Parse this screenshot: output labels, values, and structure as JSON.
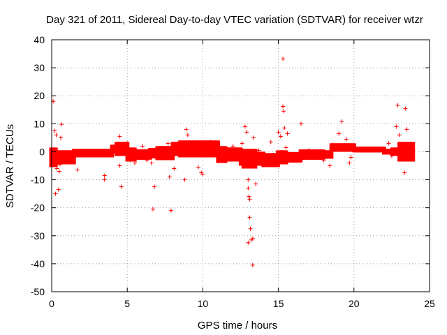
{
  "chart_data": {
    "type": "scatter",
    "title": "Day 321 of 2011, Sidereal Day-to-day VTEC variation (SDTVAR) for receiver wtzr",
    "xlabel": "GPS time / hours",
    "ylabel": "SDTVAR / TECUs",
    "xlim": [
      0,
      25
    ],
    "ylim": [
      -50,
      40
    ],
    "xticks": [
      0,
      5,
      10,
      15,
      20,
      25
    ],
    "yticks": [
      -50,
      -40,
      -30,
      -20,
      -10,
      0,
      10,
      20,
      30,
      40
    ],
    "grid": true,
    "marker": "+",
    "series_color": "#ff0000",
    "series": [
      {
        "name": "SDTVAR",
        "points": [
          [
            0.1,
            18
          ],
          [
            0.2,
            7.5
          ],
          [
            0.3,
            6
          ],
          [
            0.25,
            -15
          ],
          [
            0.45,
            -13.5
          ],
          [
            0.35,
            -6
          ],
          [
            0.5,
            -7
          ],
          [
            0.55,
            -4.5
          ],
          [
            0.65,
            9.8
          ],
          [
            0.6,
            5
          ],
          [
            0.8,
            -2.5
          ],
          [
            1.2,
            -2.0
          ],
          [
            1.5,
            -1.5
          ],
          [
            1.7,
            -6.5
          ],
          [
            2.0,
            -1.0
          ],
          [
            2.5,
            -0.8
          ],
          [
            3.0,
            -0.5
          ],
          [
            3.5,
            -8.5
          ],
          [
            3.5,
            -10
          ],
          [
            4.0,
            0.5
          ],
          [
            4.5,
            5.5
          ],
          [
            4.5,
            -5.0
          ],
          [
            4.6,
            -12.5
          ],
          [
            5.0,
            3.0
          ],
          [
            5.2,
            -3.0
          ],
          [
            5.5,
            -4.0
          ],
          [
            6.0,
            2.0
          ],
          [
            6.3,
            -3.0
          ],
          [
            6.6,
            -4.0
          ],
          [
            6.7,
            -20.5
          ],
          [
            6.8,
            -12.5
          ],
          [
            7.2,
            0.5
          ],
          [
            7.5,
            -1.0
          ],
          [
            7.7,
            3.0
          ],
          [
            7.8,
            -9.0
          ],
          [
            7.9,
            -21
          ],
          [
            8.1,
            -6.0
          ],
          [
            8.5,
            2.0
          ],
          [
            8.8,
            -10
          ],
          [
            8.9,
            8.0
          ],
          [
            9.0,
            6.0
          ],
          [
            9.3,
            3.0
          ],
          [
            9.7,
            -5.5
          ],
          [
            9.9,
            -7.5
          ],
          [
            10.0,
            -8.0
          ],
          [
            10.5,
            3.5
          ],
          [
            11.0,
            1.5
          ],
          [
            11.5,
            -2.5
          ],
          [
            12.0,
            2.0
          ],
          [
            12.3,
            -2.5
          ],
          [
            12.6,
            3.0
          ],
          [
            12.8,
            9.0
          ],
          [
            12.9,
            7.0
          ],
          [
            13.0,
            -10
          ],
          [
            13.0,
            -13
          ],
          [
            13.05,
            -16
          ],
          [
            13.1,
            -17
          ],
          [
            13.1,
            -23.5
          ],
          [
            13.15,
            -27.5
          ],
          [
            13.0,
            -32.5
          ],
          [
            13.2,
            -31.5
          ],
          [
            13.3,
            -31
          ],
          [
            13.3,
            -40.5
          ],
          [
            13.35,
            5.0
          ],
          [
            13.5,
            -11.5
          ],
          [
            13.7,
            0.5
          ],
          [
            14.0,
            -3.0
          ],
          [
            14.5,
            3.5
          ],
          [
            15.0,
            7.0
          ],
          [
            15.15,
            5.5
          ],
          [
            15.3,
            33.2
          ],
          [
            15.3,
            16.2
          ],
          [
            15.35,
            14.5
          ],
          [
            15.4,
            8.5
          ],
          [
            15.6,
            6.5
          ],
          [
            15.5,
            1.5
          ],
          [
            16.0,
            -2.0
          ],
          [
            16.5,
            10.0
          ],
          [
            17.0,
            0.5
          ],
          [
            17.5,
            -1.0
          ],
          [
            18.0,
            -3.0
          ],
          [
            18.4,
            -5.0
          ],
          [
            18.6,
            2.5
          ],
          [
            19.0,
            6.5
          ],
          [
            19.2,
            10.8
          ],
          [
            19.5,
            4.5
          ],
          [
            19.7,
            -4.0
          ],
          [
            19.8,
            -2.0
          ],
          [
            20.0,
            2.0
          ],
          [
            21.0,
            0.5
          ],
          [
            22.0,
            1.0
          ],
          [
            22.3,
            3.0
          ],
          [
            22.5,
            -1.5
          ],
          [
            22.8,
            9.0
          ],
          [
            22.9,
            16.6
          ],
          [
            23.0,
            6.0
          ],
          [
            23.2,
            -2.0
          ],
          [
            23.4,
            15.4
          ],
          [
            23.35,
            -7.5
          ],
          [
            23.5,
            8.0
          ],
          [
            23.7,
            2.5
          ],
          [
            23.85,
            1.0
          ]
        ]
      }
    ]
  }
}
